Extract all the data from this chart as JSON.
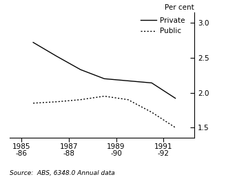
{
  "x_years": [
    1985.5,
    1986.5,
    1987.5,
    1988.5,
    1989.5,
    1990.5,
    1991.5
  ],
  "private": [
    2.72,
    2.52,
    2.33,
    2.2,
    2.17,
    2.14,
    1.92
  ],
  "public": [
    1.85,
    1.87,
    1.9,
    1.95,
    1.9,
    1.72,
    1.5
  ],
  "x_ticks": [
    1985,
    1987,
    1989,
    1991
  ],
  "x_tick_labels_top": [
    "1985",
    "1987",
    "1989",
    "1991"
  ],
  "x_tick_labels_bot": [
    "-86",
    "-88",
    "-90",
    "-92"
  ],
  "y_ticks": [
    1.5,
    2.0,
    2.5,
    3.0
  ],
  "ylim": [
    1.35,
    3.15
  ],
  "xlim": [
    1984.5,
    1992.3
  ],
  "ylabel": "Per cent",
  "source_text": "Source:  ABS, 6348.0 Annual data",
  "legend_private": "Private",
  "legend_public": "Public",
  "line_color": "#000000",
  "background_color": "#ffffff"
}
